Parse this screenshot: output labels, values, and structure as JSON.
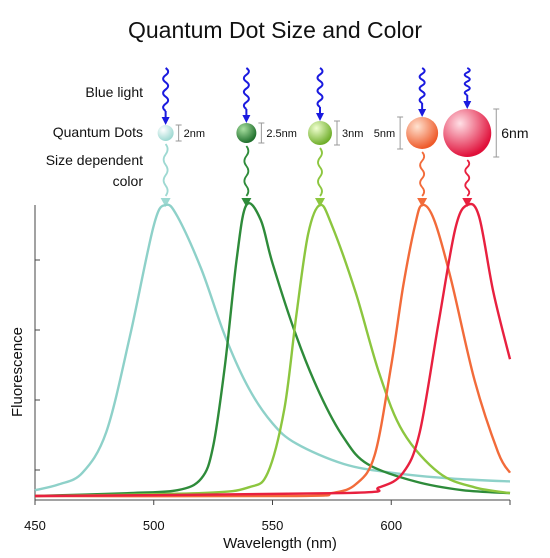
{
  "title": "Quantum Dot Size and Color",
  "labels": {
    "blue_light": "Blue light",
    "quantum_dots": "Quantum Dots",
    "size_dependent_line1": "Size dependent",
    "size_dependent_line2": "color"
  },
  "dots": [
    {
      "size_label": "2nm",
      "color": "#9ED9D2"
    },
    {
      "size_label": "2.5nm",
      "color": "#2E8B3A"
    },
    {
      "size_label": "3nm",
      "color": "#8CC63F"
    },
    {
      "size_label": "5nm",
      "color": "#F26B3A"
    },
    {
      "size_label": "6nm",
      "color": "#E8203F"
    }
  ],
  "chart_data": {
    "type": "line",
    "xlabel": "Wavelength (nm)",
    "ylabel": "Fluorescence",
    "xlim": [
      450,
      650
    ],
    "xticks": [
      450,
      500,
      550,
      600
    ],
    "ylim": [
      0,
      1
    ],
    "grid": false,
    "series": [
      {
        "color": "#8ED1C9",
        "points": [
          [
            450,
            0.02
          ],
          [
            460,
            0.04
          ],
          [
            470,
            0.08
          ],
          [
            480,
            0.22
          ],
          [
            490,
            0.55
          ],
          [
            500,
            0.93
          ],
          [
            505,
            1.0
          ],
          [
            510,
            0.96
          ],
          [
            520,
            0.78
          ],
          [
            530,
            0.55
          ],
          [
            540,
            0.37
          ],
          [
            550,
            0.25
          ],
          [
            560,
            0.18
          ],
          [
            580,
            0.11
          ],
          [
            600,
            0.08
          ],
          [
            625,
            0.06
          ],
          [
            650,
            0.05
          ]
        ]
      },
      {
        "color": "#2E8B3A",
        "points": [
          [
            450,
            0.0
          ],
          [
            490,
            0.01
          ],
          [
            510,
            0.02
          ],
          [
            520,
            0.06
          ],
          [
            525,
            0.17
          ],
          [
            530,
            0.45
          ],
          [
            535,
            0.82
          ],
          [
            539,
            1.0
          ],
          [
            545,
            0.95
          ],
          [
            550,
            0.8
          ],
          [
            560,
            0.55
          ],
          [
            570,
            0.35
          ],
          [
            580,
            0.2
          ],
          [
            590,
            0.11
          ],
          [
            610,
            0.05
          ],
          [
            630,
            0.02
          ],
          [
            650,
            0.01
          ]
        ]
      },
      {
        "color": "#8CC63F",
        "points": [
          [
            450,
            0.0
          ],
          [
            520,
            0.01
          ],
          [
            540,
            0.03
          ],
          [
            548,
            0.08
          ],
          [
            555,
            0.3
          ],
          [
            560,
            0.62
          ],
          [
            565,
            0.9
          ],
          [
            570,
            1.0
          ],
          [
            575,
            0.93
          ],
          [
            585,
            0.7
          ],
          [
            595,
            0.42
          ],
          [
            605,
            0.22
          ],
          [
            620,
            0.08
          ],
          [
            635,
            0.03
          ],
          [
            650,
            0.01
          ]
        ]
      },
      {
        "color": "#F26B3A",
        "points": [
          [
            450,
            0.0
          ],
          [
            560,
            0.0
          ],
          [
            575,
            0.01
          ],
          [
            585,
            0.04
          ],
          [
            593,
            0.14
          ],
          [
            600,
            0.45
          ],
          [
            605,
            0.72
          ],
          [
            610,
            0.93
          ],
          [
            613,
            1.0
          ],
          [
            618,
            0.95
          ],
          [
            625,
            0.75
          ],
          [
            635,
            0.4
          ],
          [
            645,
            0.15
          ],
          [
            650,
            0.08
          ]
        ]
      },
      {
        "color": "#E8203F",
        "points": [
          [
            450,
            0.0
          ],
          [
            580,
            0.01
          ],
          [
            595,
            0.03
          ],
          [
            605,
            0.08
          ],
          [
            612,
            0.22
          ],
          [
            620,
            0.6
          ],
          [
            627,
            0.92
          ],
          [
            632,
            1.0
          ],
          [
            637,
            0.96
          ],
          [
            643,
            0.7
          ],
          [
            650,
            0.47
          ]
        ]
      }
    ]
  }
}
